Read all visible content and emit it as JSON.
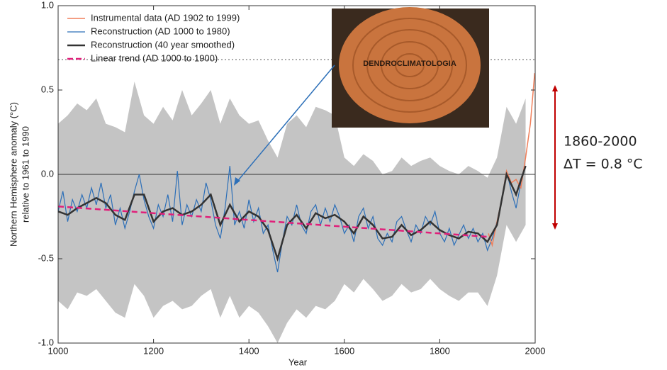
{
  "chart_data": {
    "type": "line",
    "xlabel": "Year",
    "ylabel": [
      "Northern Hemisphere anomaly (°C)",
      "relative to 1961 to 1990"
    ],
    "xlim": [
      1000,
      2000
    ],
    "xticks": [
      1000,
      1200,
      1400,
      1600,
      1800,
      2000
    ],
    "ylim": [
      -1,
      1
    ],
    "yticks": [
      {
        "value": -1,
        "label": "-1.0"
      },
      {
        "value": -0.5,
        "label": "-0.5"
      },
      {
        "value": 0,
        "label": "0.0"
      },
      {
        "value": 0.5,
        "label": "0.5"
      },
      {
        "value": 1,
        "label": "1.0"
      }
    ],
    "reference_lines": [
      0,
      0.68
    ],
    "band": {
      "color": "#c4c4c4",
      "x": [
        1000,
        1020,
        1040,
        1060,
        1080,
        1100,
        1120,
        1140,
        1160,
        1180,
        1200,
        1220,
        1240,
        1260,
        1280,
        1300,
        1320,
        1340,
        1360,
        1380,
        1400,
        1420,
        1440,
        1460,
        1480,
        1500,
        1520,
        1540,
        1560,
        1580,
        1600,
        1620,
        1640,
        1660,
        1680,
        1700,
        1720,
        1740,
        1760,
        1780,
        1800,
        1820,
        1840,
        1860,
        1880,
        1900,
        1920,
        1940,
        1960,
        1980
      ],
      "upper": [
        0.3,
        0.35,
        0.42,
        0.38,
        0.45,
        0.3,
        0.28,
        0.25,
        0.55,
        0.35,
        0.3,
        0.4,
        0.32,
        0.5,
        0.35,
        0.42,
        0.5,
        0.3,
        0.45,
        0.35,
        0.3,
        0.32,
        0.2,
        0.1,
        0.3,
        0.35,
        0.28,
        0.4,
        0.38,
        0.35,
        0.1,
        0.05,
        0.12,
        0.08,
        0.0,
        0.02,
        0.1,
        0.05,
        0.08,
        0.1,
        0.05,
        0.02,
        0.0,
        0.05,
        0.02,
        -0.02,
        0.1,
        0.4,
        0.3,
        0.45
      ],
      "lower": [
        -0.75,
        -0.8,
        -0.7,
        -0.72,
        -0.68,
        -0.75,
        -0.82,
        -0.85,
        -0.65,
        -0.72,
        -0.85,
        -0.78,
        -0.75,
        -0.8,
        -0.78,
        -0.72,
        -0.68,
        -0.85,
        -0.72,
        -0.85,
        -0.78,
        -0.82,
        -0.9,
        -1.0,
        -0.88,
        -0.8,
        -0.85,
        -0.78,
        -0.8,
        -0.75,
        -0.65,
        -0.7,
        -0.62,
        -0.68,
        -0.75,
        -0.72,
        -0.65,
        -0.7,
        -0.68,
        -0.62,
        -0.68,
        -0.72,
        -0.75,
        -0.7,
        -0.7,
        -0.78,
        -0.6,
        -0.3,
        -0.4,
        -0.3
      ]
    },
    "series": [
      {
        "name": "Instrumental data (AD 1902 to 1999)",
        "color": "#f07f5a",
        "width": 1.5,
        "x": [
          1902,
          1910,
          1920,
          1930,
          1940,
          1950,
          1960,
          1970,
          1980,
          1990,
          1999
        ],
        "values": [
          -0.35,
          -0.42,
          -0.28,
          -0.15,
          0.02,
          -0.05,
          -0.03,
          -0.08,
          0.1,
          0.3,
          0.6
        ]
      },
      {
        "name": "Reconstruction (AD 1000 to 1980)",
        "color": "#2c6fb8",
        "width": 1.2,
        "x": [
          1000,
          1010,
          1020,
          1030,
          1040,
          1050,
          1060,
          1070,
          1080,
          1090,
          1100,
          1110,
          1120,
          1130,
          1140,
          1150,
          1160,
          1170,
          1180,
          1190,
          1200,
          1210,
          1220,
          1230,
          1240,
          1250,
          1260,
          1270,
          1280,
          1290,
          1300,
          1310,
          1320,
          1330,
          1340,
          1350,
          1360,
          1370,
          1380,
          1390,
          1400,
          1410,
          1420,
          1430,
          1440,
          1450,
          1460,
          1470,
          1480,
          1490,
          1500,
          1510,
          1520,
          1530,
          1540,
          1550,
          1560,
          1570,
          1580,
          1590,
          1600,
          1610,
          1620,
          1630,
          1640,
          1650,
          1660,
          1670,
          1680,
          1690,
          1700,
          1710,
          1720,
          1730,
          1740,
          1750,
          1760,
          1770,
          1780,
          1790,
          1800,
          1810,
          1820,
          1830,
          1840,
          1850,
          1860,
          1870,
          1880,
          1890,
          1900,
          1910,
          1920,
          1930,
          1940,
          1950,
          1960,
          1970,
          1980
        ],
        "values": [
          -0.22,
          -0.1,
          -0.28,
          -0.15,
          -0.22,
          -0.12,
          -0.2,
          -0.08,
          -0.18,
          -0.05,
          -0.2,
          -0.12,
          -0.3,
          -0.2,
          -0.32,
          -0.22,
          -0.1,
          0.0,
          -0.15,
          -0.25,
          -0.32,
          -0.18,
          -0.25,
          -0.12,
          -0.28,
          0.02,
          -0.3,
          -0.18,
          -0.25,
          -0.15,
          -0.22,
          -0.05,
          -0.15,
          -0.3,
          -0.38,
          -0.2,
          0.05,
          -0.3,
          -0.22,
          -0.32,
          -0.15,
          -0.28,
          -0.2,
          -0.35,
          -0.3,
          -0.45,
          -0.58,
          -0.4,
          -0.25,
          -0.3,
          -0.18,
          -0.3,
          -0.35,
          -0.22,
          -0.18,
          -0.3,
          -0.2,
          -0.28,
          -0.18,
          -0.25,
          -0.35,
          -0.3,
          -0.4,
          -0.25,
          -0.2,
          -0.32,
          -0.25,
          -0.38,
          -0.42,
          -0.35,
          -0.4,
          -0.28,
          -0.25,
          -0.33,
          -0.4,
          -0.3,
          -0.35,
          -0.25,
          -0.3,
          -0.22,
          -0.35,
          -0.4,
          -0.32,
          -0.42,
          -0.36,
          -0.3,
          -0.38,
          -0.32,
          -0.4,
          -0.35,
          -0.45,
          -0.38,
          -0.28,
          -0.15,
          0.02,
          -0.1,
          -0.2,
          -0.05,
          0.05
        ]
      },
      {
        "name": "Reconstruction (40 year smoothed)",
        "color": "#333333",
        "width": 2.5,
        "x": [
          1000,
          1020,
          1040,
          1060,
          1080,
          1100,
          1120,
          1140,
          1160,
          1180,
          1200,
          1220,
          1240,
          1260,
          1280,
          1300,
          1320,
          1340,
          1360,
          1380,
          1400,
          1420,
          1440,
          1460,
          1480,
          1500,
          1520,
          1540,
          1560,
          1580,
          1600,
          1620,
          1640,
          1660,
          1680,
          1700,
          1720,
          1740,
          1760,
          1780,
          1800,
          1820,
          1840,
          1860,
          1880,
          1900,
          1920,
          1940,
          1960,
          1980
        ],
        "values": [
          -0.22,
          -0.24,
          -0.2,
          -0.17,
          -0.14,
          -0.17,
          -0.24,
          -0.27,
          -0.12,
          -0.12,
          -0.28,
          -0.22,
          -0.2,
          -0.24,
          -0.22,
          -0.18,
          -0.12,
          -0.3,
          -0.18,
          -0.28,
          -0.22,
          -0.25,
          -0.33,
          -0.5,
          -0.3,
          -0.24,
          -0.32,
          -0.23,
          -0.26,
          -0.24,
          -0.28,
          -0.35,
          -0.25,
          -0.3,
          -0.38,
          -0.37,
          -0.3,
          -0.36,
          -0.33,
          -0.28,
          -0.33,
          -0.36,
          -0.38,
          -0.34,
          -0.35,
          -0.4,
          -0.3,
          0.0,
          -0.12,
          0.05
        ]
      },
      {
        "name": "Linear trend (AD 1000 to 1900)",
        "color": "#e0207a",
        "width": 2.5,
        "dashed": true,
        "x": [
          1000,
          1900
        ],
        "values": [
          -0.19,
          -0.37
        ]
      }
    ]
  },
  "image": {
    "label": "DENDROCLIMATOLOGIA"
  },
  "annotation": {
    "lines": [
      "1860-2000",
      "ΔT = 0.8 °C"
    ],
    "color": "#c00000"
  }
}
